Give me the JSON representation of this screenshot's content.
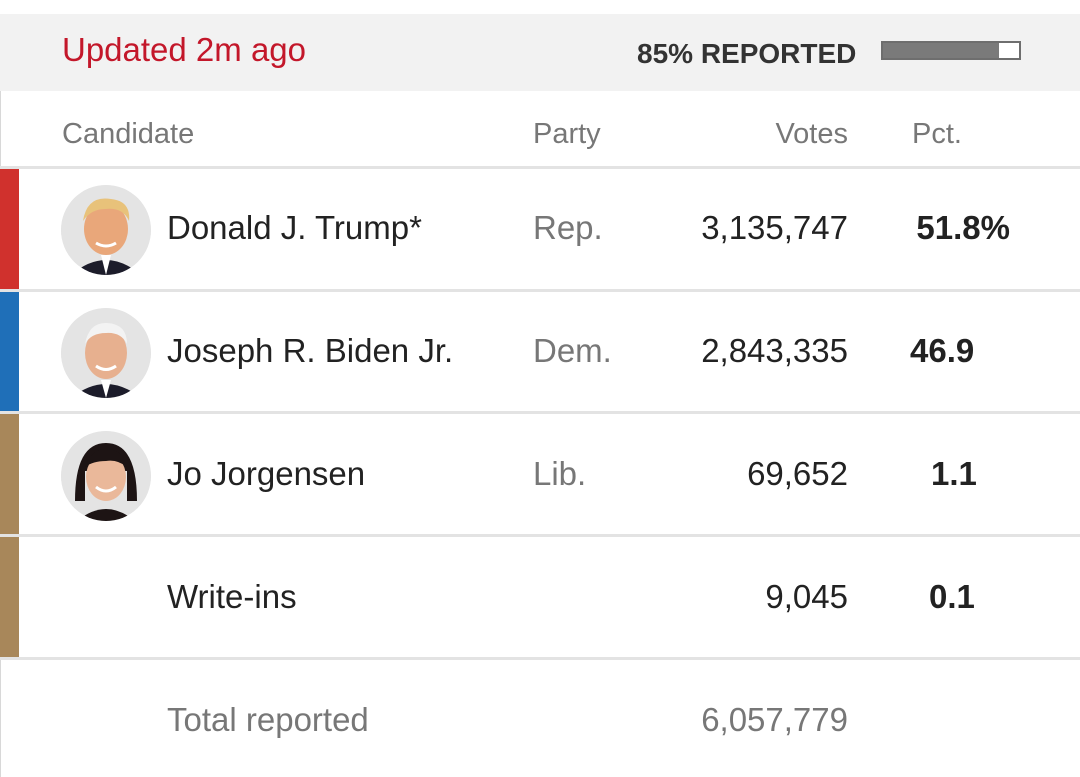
{
  "header": {
    "updated": "Updated 2m ago",
    "reported_label": "85% REPORTED",
    "reported_fraction": 0.85
  },
  "columns": {
    "candidate": "Candidate",
    "party": "Party",
    "votes": "Votes",
    "pct": "Pct."
  },
  "rows": [
    {
      "name": "Donald J. Trump*",
      "party": "Rep.",
      "votes": "3,135,747",
      "pct": "51.8%",
      "color": "#d0312d",
      "avatar": "trump-portrait"
    },
    {
      "name": "Joseph R. Biden Jr.",
      "party": "Dem.",
      "votes": "2,843,335",
      "pct": "46.9",
      "color": "#1f6fb8",
      "avatar": "biden-portrait"
    },
    {
      "name": "Jo Jorgensen",
      "party": "Lib.",
      "votes": "69,652",
      "pct": "1.1",
      "color": "#a8875a",
      "avatar": "jorgensen-portrait"
    },
    {
      "name": "Write-ins",
      "party": "",
      "votes": "9,045",
      "pct": "0.1",
      "color": "#a8875a",
      "avatar": ""
    }
  ],
  "total": {
    "label": "Total reported",
    "votes": "6,057,779"
  }
}
